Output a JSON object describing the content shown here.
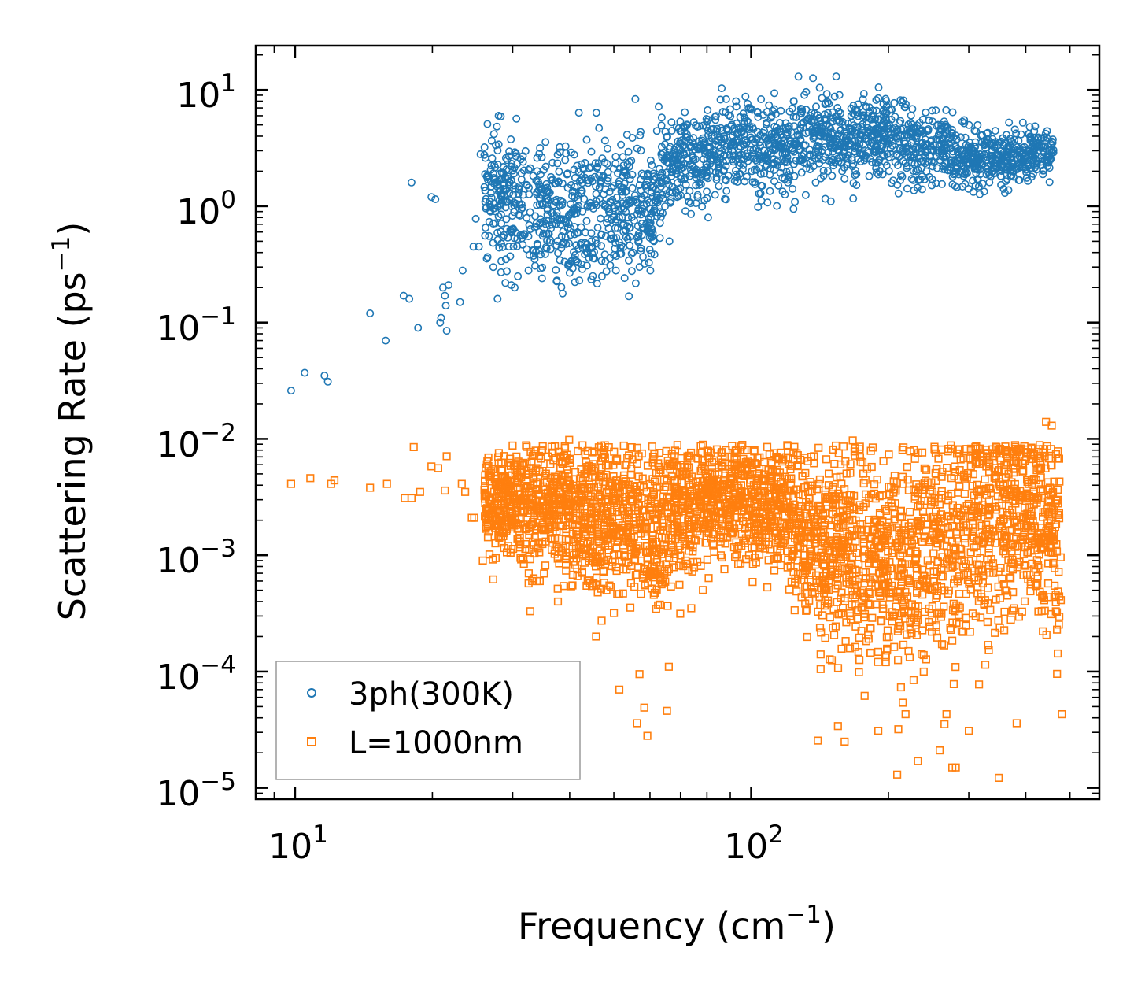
{
  "chart_data": {
    "type": "scatter",
    "xscale": "log",
    "yscale": "log",
    "xlim": [
      8.2,
      580
    ],
    "ylim": [
      8e-06,
      24
    ],
    "xlabel": {
      "main": "Frequency (cm",
      "sup": "−1",
      "tail": ")"
    },
    "ylabel": {
      "main": "Scattering Rate (ps",
      "sup": "−1",
      "tail": ")"
    },
    "x_ticks": [
      {
        "base": "10",
        "exp": "1",
        "value": 10
      },
      {
        "base": "10",
        "exp": "2",
        "value": 100
      }
    ],
    "y_ticks": [
      {
        "base": "10",
        "exp": "1",
        "value": 10
      },
      {
        "base": "10",
        "exp": "0",
        "value": 1
      },
      {
        "base": "10",
        "exp": "−1",
        "value": 0.1
      },
      {
        "base": "10",
        "exp": "−2",
        "value": 0.01
      },
      {
        "base": "10",
        "exp": "−3",
        "value": 0.001
      },
      {
        "base": "10",
        "exp": "−4",
        "value": 0.0001
      },
      {
        "base": "10",
        "exp": "−5",
        "value": 1e-05
      }
    ],
    "legend_position": "bottom-left",
    "series": [
      {
        "name": "3ph(300K)",
        "marker": "circle-open",
        "color": "#1f77b4",
        "points": [
          [
            9.8,
            0.026
          ],
          [
            10.5,
            0.037
          ],
          [
            11.6,
            0.035
          ],
          [
            11.8,
            0.031
          ],
          [
            14.6,
            0.12
          ],
          [
            15.8,
            0.07
          ],
          [
            17.3,
            0.17
          ],
          [
            17.8,
            0.16
          ],
          [
            18.0,
            1.6
          ],
          [
            18.6,
            0.09
          ],
          [
            19.9,
            1.2
          ],
          [
            20.3,
            1.15
          ],
          [
            20.8,
            0.1
          ],
          [
            20.9,
            0.11
          ],
          [
            21.1,
            0.2
          ],
          [
            21.3,
            0.17
          ],
          [
            21.4,
            0.14
          ],
          [
            21.5,
            0.085
          ],
          [
            21.7,
            0.21
          ],
          [
            23.0,
            0.15
          ],
          [
            23.3,
            0.28
          ],
          [
            24.6,
            0.45
          ],
          [
            24.9,
            0.78
          ],
          [
            25.3,
            0.45
          ],
          [
            25.5,
            2.8
          ],
          [
            26.8,
            0.9
          ],
          [
            27.2,
            0.3
          ],
          [
            27.6,
            1.6
          ],
          [
            27.8,
            0.16
          ],
          [
            28.3,
            0.85
          ],
          [
            29.0,
            0.35
          ],
          [
            29.8,
            0.21
          ],
          [
            30.3,
            0.2
          ],
          [
            30.8,
            0.25
          ],
          [
            32.5,
            0.28
          ],
          [
            34.8,
            0.24
          ],
          [
            37.5,
            0.23
          ],
          [
            40.3,
            2.9
          ],
          [
            42.0,
            0.23
          ],
          [
            47.0,
            0.34
          ],
          [
            50.5,
            0.28
          ],
          [
            56.2,
            0.54
          ],
          [
            58.4,
            0.32
          ],
          [
            60.1,
            0.28
          ],
          [
            61.2,
            0.5
          ],
          [
            66.2,
            0.5
          ],
          [
            68.8,
            1.2
          ],
          [
            74.3,
            2.2
          ],
          [
            80.5,
            0.8
          ],
          [
            94.5,
            1.9
          ],
          [
            105.2,
            1.5
          ],
          [
            110.0,
            1.35
          ],
          [
            120.3,
            1.6
          ],
          [
            138.5,
            1.6
          ],
          [
            149.5,
            1.1
          ],
          [
            166.8,
            2.2
          ],
          [
            190.3,
            10.5
          ],
          [
            230.0,
            2.0
          ],
          [
            240.0,
            1.7
          ],
          [
            262.0,
            1.55
          ],
          [
            300.4,
            2.4
          ],
          [
            360.0,
            1.3
          ],
          [
            408.0,
            4.8
          ],
          [
            450.0,
            3.0
          ]
        ]
      },
      {
        "name": "L=1000nm",
        "marker": "square-open",
        "color": "#ff7f0e",
        "points": [
          [
            9.8,
            0.0041
          ],
          [
            10.8,
            0.0046
          ],
          [
            12.0,
            0.0041
          ],
          [
            12.2,
            0.0044
          ],
          [
            14.6,
            0.0038
          ],
          [
            15.9,
            0.0041
          ],
          [
            17.4,
            0.0031
          ],
          [
            18.0,
            0.0031
          ],
          [
            18.2,
            0.0085
          ],
          [
            18.8,
            0.0035
          ],
          [
            19.9,
            0.0058
          ],
          [
            20.6,
            0.0056
          ],
          [
            21.3,
            0.0036
          ],
          [
            21.5,
            0.0071
          ],
          [
            23.2,
            0.0041
          ],
          [
            23.6,
            0.0035
          ],
          [
            24.4,
            0.0021
          ],
          [
            24.7,
            0.0021
          ],
          [
            25.8,
            0.0009
          ],
          [
            26.4,
            0.0064
          ],
          [
            27.2,
            0.00062
          ],
          [
            28.9,
            0.0046
          ],
          [
            29.7,
            0.0035
          ],
          [
            30.2,
            0.0018
          ],
          [
            31.2,
            0.00095
          ],
          [
            32.6,
            0.0015
          ],
          [
            32.8,
            0.00033
          ],
          [
            33.1,
            0.0006
          ],
          [
            33.9,
            0.0006
          ],
          [
            34.4,
            0.0006
          ],
          [
            37.7,
            0.0004
          ],
          [
            39.9,
            0.0098
          ],
          [
            42.7,
            0.0088
          ],
          [
            45.7,
            0.0002
          ],
          [
            51.4,
            7e-05
          ],
          [
            56.2,
            3.6e-05
          ],
          [
            56.9,
            9.5e-05
          ],
          [
            58.3,
            4.9e-05
          ],
          [
            59.2,
            2.8e-05
          ],
          [
            65.4,
            4.6e-05
          ],
          [
            66.0,
            0.00011
          ],
          [
            73.9,
            0.00035
          ],
          [
            140.0,
            2.55e-05
          ],
          [
            142.0,
            0.000105
          ],
          [
            155.0,
            3.4e-05
          ],
          [
            160.3,
            2.5e-05
          ],
          [
            167.0,
            0.0097
          ],
          [
            168.5,
            0.0078
          ],
          [
            190.0,
            3.1e-05
          ],
          [
            209.0,
            1.3e-05
          ],
          [
            215.0,
            5.4e-05
          ],
          [
            218.0,
            4.3e-05
          ],
          [
            232.0,
            1.7e-05
          ],
          [
            259.0,
            2.1e-05
          ],
          [
            268.0,
            4.3e-05
          ],
          [
            276.0,
            1.5e-05
          ],
          [
            281.0,
            1.5e-05
          ],
          [
            300.0,
            3.1e-05
          ],
          [
            349.0,
            1.22e-05
          ],
          [
            382.0,
            3.6e-05
          ],
          [
            443.0,
            0.014
          ],
          [
            456.0,
            0.013
          ],
          [
            480.0,
            4.3e-05
          ]
        ]
      }
    ]
  }
}
